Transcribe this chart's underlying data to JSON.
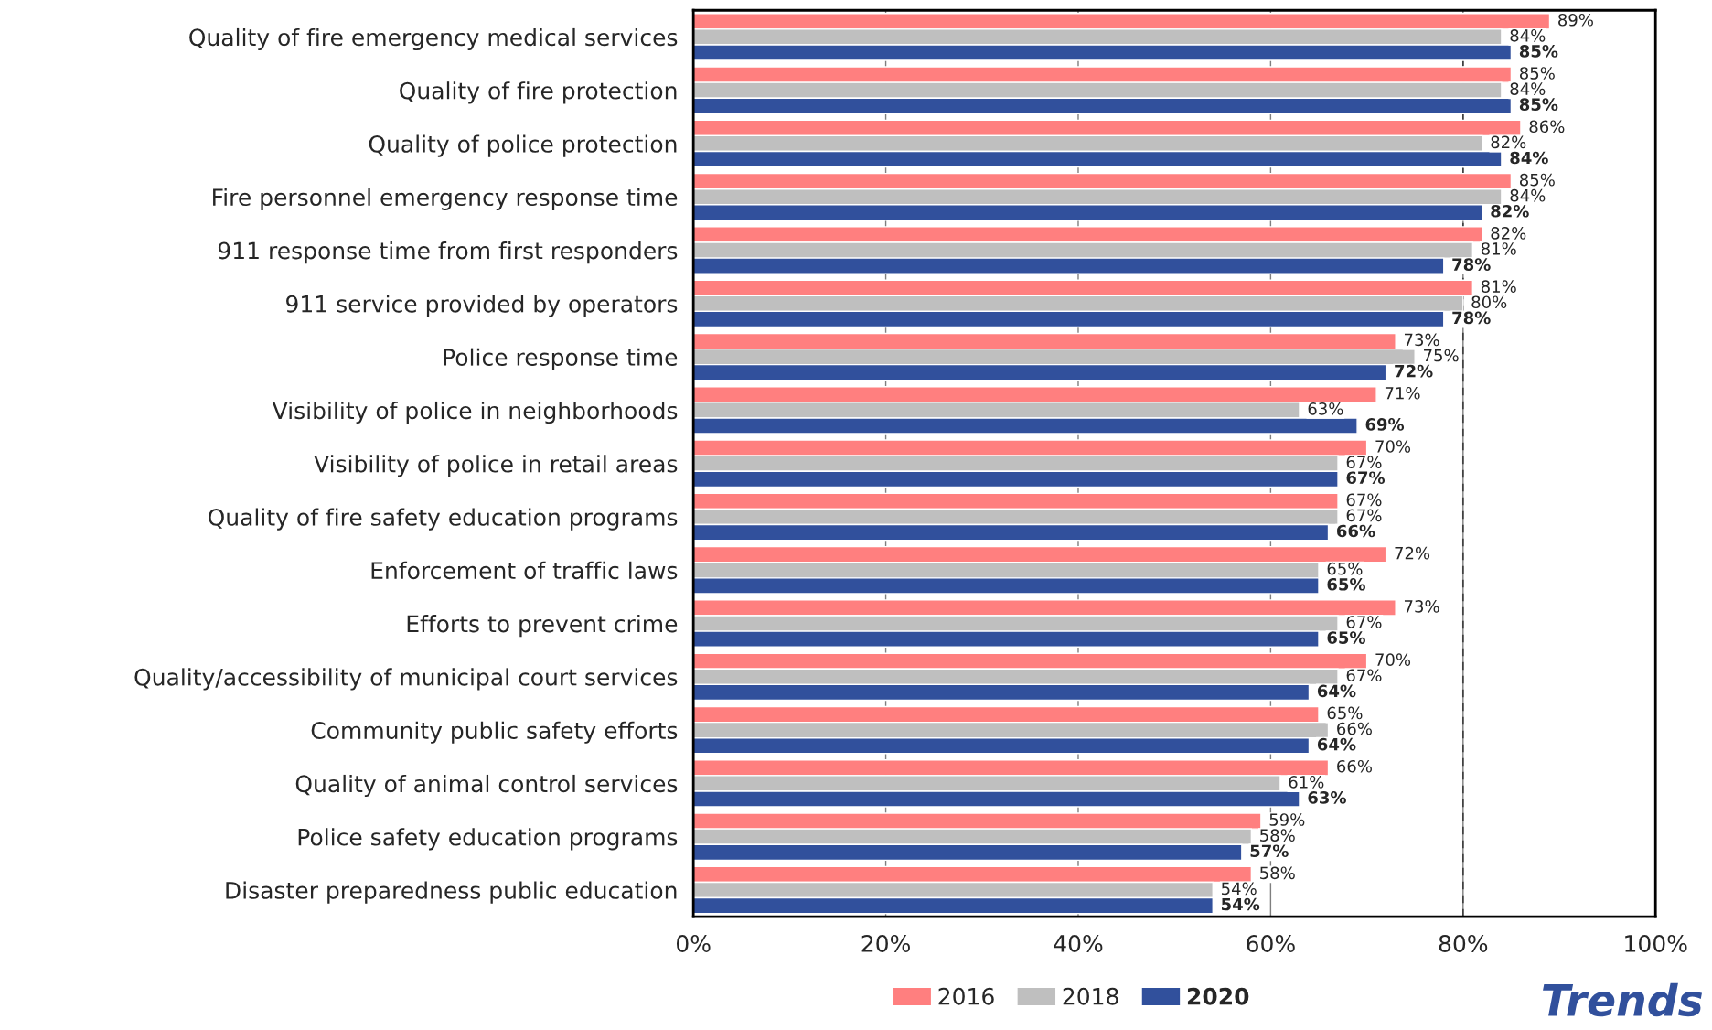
{
  "chart_data": {
    "type": "bar",
    "orientation": "horizontal",
    "categories": [
      "Quality of fire emergency medical services",
      "Quality of fire protection",
      "Quality of police protection",
      "Fire personnel emergency response time",
      "911 response time from first responders",
      "911 service provided by operators",
      "Police response time",
      "Visibility of police in neighborhoods",
      "Visibility of police in retail areas",
      "Quality of fire safety education programs",
      "Enforcement of traffic laws",
      "Efforts to prevent crime",
      "Quality/accessibility of municipal court services",
      "Community public safety efforts",
      "Quality of animal control services",
      "Police safety education programs",
      "Disaster preparedness public education"
    ],
    "series": [
      {
        "name": "2016",
        "color": "#ff7f7f",
        "values": [
          89,
          85,
          86,
          85,
          82,
          81,
          73,
          71,
          70,
          67,
          72,
          73,
          70,
          65,
          66,
          59,
          58
        ],
        "value_labels": [
          "89%",
          "85%",
          "86%",
          "85%",
          "82%",
          "81%",
          "73%",
          "71%",
          "70%",
          "67%",
          "72%",
          "73%",
          "70%",
          "65%",
          "66%",
          "59%",
          "58%"
        ]
      },
      {
        "name": "2018",
        "color": "#bfbfbf",
        "values": [
          84,
          84,
          82,
          84,
          81,
          80,
          75,
          63,
          67,
          67,
          65,
          67,
          67,
          66,
          61,
          58,
          54
        ],
        "value_labels": [
          "84%",
          "84%",
          "82%",
          "84%",
          "81%",
          "80%",
          "75%",
          "63%",
          "67%",
          "67%",
          "65%",
          "67%",
          "67%",
          "66%",
          "61%",
          "58%",
          "54%"
        ]
      },
      {
        "name": "2020",
        "color": "#31509c",
        "values": [
          85,
          85,
          84,
          82,
          78,
          78,
          72,
          69,
          67,
          66,
          65,
          65,
          64,
          64,
          63,
          57,
          54
        ],
        "value_labels": [
          "85%",
          "85%",
          "84%",
          "82%",
          "78%",
          "78%",
          "72%",
          "69%",
          "67%",
          "66%",
          "65%",
          "65%",
          "64%",
          "64%",
          "63%",
          "57%",
          "54%"
        ]
      }
    ],
    "xlim": [
      0,
      100
    ],
    "xticks": [
      {
        "value": 0,
        "label": "0%"
      },
      {
        "value": 20,
        "label": "20%"
      },
      {
        "value": 40,
        "label": "40%"
      },
      {
        "value": 60,
        "label": "60%"
      },
      {
        "value": 80,
        "label": "80%"
      },
      {
        "value": 100,
        "label": "100%"
      }
    ],
    "ref_lines": [
      {
        "axis": "x",
        "value": 80,
        "line_style": "dashed",
        "color": "#404040"
      }
    ],
    "grid": "x",
    "legend": "bottom",
    "annotations": [
      "Trends"
    ]
  }
}
